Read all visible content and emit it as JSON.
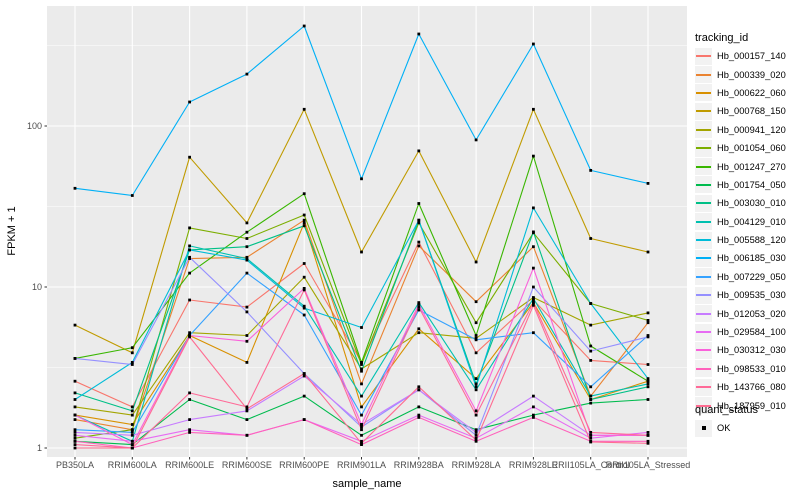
{
  "figure": {
    "y_axis": {
      "title": "FPKM + 1",
      "tick_labels": [
        "100",
        "10",
        "1"
      ]
    },
    "x_axis": {
      "title": "sample_name"
    },
    "legend": {
      "tracking_title": "tracking_id",
      "quant_title": "quant_status",
      "quant_ok_label": "OK"
    },
    "colors": {
      "panel_bg": "#EBEBEB",
      "gridline": "#FFFFFF",
      "legend_key_bg": "#F2F2F2",
      "tick_text": "#4D4D4D",
      "point": "#000000"
    }
  },
  "chart_data": {
    "type": "line",
    "title": "",
    "xlabel": "sample_name",
    "ylabel": "FPKM + 1",
    "y_scale": "log10",
    "y_ticks": [
      1,
      10,
      100
    ],
    "ylim": [
      0.9,
      500
    ],
    "grid": true,
    "legend_position": "right",
    "point_marker": "small black square (quant_status = OK) on every data point",
    "categories": [
      "PB350LA",
      "RRIM600LA",
      "RRIM600LE",
      "RRIM600SE",
      "RRIM600PE",
      "RRIM901LA",
      "RRIM928BA",
      "RRIM928LA",
      "RRIM928LE",
      "RRII105LA_Control",
      "RRII105LA_Stressed"
    ],
    "series": [
      {
        "name": "Hb_000157_140",
        "color": "#F8766D",
        "values": [
          2.6,
          1.8,
          8.3,
          7.5,
          14.0,
          3.4,
          19.0,
          3.9,
          8.3,
          3.5,
          3.3
        ]
      },
      {
        "name": "Hb_000339_020",
        "color": "#EA8331",
        "values": [
          1.5,
          1.3,
          15.0,
          15.3,
          26.0,
          2.5,
          18.0,
          8.1,
          17.8,
          2.1,
          6.0
        ]
      },
      {
        "name": "Hb_000622_060",
        "color": "#D89000",
        "values": [
          1.6,
          1.4,
          5.0,
          3.4,
          25.0,
          1.8,
          5.5,
          2.7,
          8.0,
          2.0,
          2.6
        ]
      },
      {
        "name": "Hb_000768_150",
        "color": "#C09B00",
        "values": [
          5.8,
          3.9,
          64.0,
          25.0,
          127.0,
          16.5,
          70.0,
          14.3,
          127.0,
          20.0,
          16.5
        ]
      },
      {
        "name": "Hb_000941_120",
        "color": "#A3A500",
        "values": [
          1.8,
          1.6,
          5.2,
          5.0,
          11.5,
          3.1,
          5.2,
          4.8,
          8.6,
          5.8,
          6.9
        ]
      },
      {
        "name": "Hb_001054_060",
        "color": "#7CAE00",
        "values": [
          1.15,
          1.3,
          23.3,
          20.0,
          28.0,
          3.3,
          25.0,
          6.0,
          21.7,
          7.9,
          6.2
        ]
      },
      {
        "name": "Hb_001247_270",
        "color": "#39B600",
        "values": [
          3.6,
          4.2,
          12.2,
          21.9,
          38.0,
          3.4,
          33.0,
          5.0,
          65.0,
          4.3,
          2.6
        ]
      },
      {
        "name": "Hb_001754_050",
        "color": "#00BB4E",
        "values": [
          1.1,
          1.05,
          2.0,
          1.5,
          2.1,
          1.2,
          1.8,
          1.3,
          1.6,
          1.9,
          2.0
        ]
      },
      {
        "name": "Hb_003030_010",
        "color": "#00C087",
        "values": [
          2.2,
          1.7,
          17.0,
          17.8,
          24.0,
          3.0,
          26.0,
          2.5,
          22.0,
          2.0,
          2.4
        ]
      },
      {
        "name": "Hb_004129_010",
        "color": "#00C0AF",
        "values": [
          1.6,
          1.1,
          18.0,
          15.0,
          7.6,
          2.1,
          8.0,
          2.3,
          8.5,
          2.1,
          2.5
        ]
      },
      {
        "name": "Hb_005588_120",
        "color": "#00BCD8",
        "values": [
          2.0,
          3.4,
          17.0,
          14.7,
          7.4,
          5.6,
          26.0,
          2.4,
          31.0,
          7.9,
          2.7
        ]
      },
      {
        "name": "Hb_006185_030",
        "color": "#00B0F6",
        "values": [
          41.0,
          37.0,
          141.0,
          210.0,
          418.0,
          47.0,
          373.0,
          82.0,
          323.0,
          53.0,
          44.0
        ]
      },
      {
        "name": "Hb_007229_050",
        "color": "#35A2FF",
        "values": [
          1.3,
          1.25,
          5.0,
          12.2,
          6.7,
          1.6,
          7.2,
          4.7,
          5.2,
          2.4,
          5.0
        ]
      },
      {
        "name": "Hb_009535_030",
        "color": "#9590FF",
        "values": [
          3.6,
          3.3,
          15.3,
          7.0,
          2.9,
          1.35,
          2.3,
          1.2,
          10.0,
          4.0,
          4.9
        ]
      },
      {
        "name": "Hb_012053_020",
        "color": "#C77CFF",
        "values": [
          1.25,
          1.2,
          1.5,
          1.7,
          2.8,
          1.4,
          2.3,
          1.25,
          2.1,
          1.2,
          1.2
        ]
      },
      {
        "name": "Hb_029584_100",
        "color": "#E76BF3",
        "values": [
          1.2,
          1.1,
          1.3,
          1.2,
          1.5,
          1.1,
          1.6,
          1.15,
          1.8,
          1.15,
          1.25
        ]
      },
      {
        "name": "Hb_030312_030",
        "color": "#FA62DB",
        "values": [
          1.6,
          1.05,
          5.0,
          4.6,
          9.8,
          1.4,
          7.8,
          1.7,
          13.1,
          1.2,
          1.2
        ]
      },
      {
        "name": "Hb_098533_010",
        "color": "#FF62BC",
        "values": [
          1.1,
          1.0,
          1.25,
          1.2,
          1.5,
          1.05,
          1.55,
          1.1,
          1.55,
          1.1,
          1.1
        ]
      },
      {
        "name": "Hb_143766_080",
        "color": "#FF6A98",
        "values": [
          1.05,
          1.0,
          2.2,
          1.8,
          9.6,
          1.3,
          7.5,
          1.6,
          8.0,
          1.25,
          1.2
        ]
      },
      {
        "name": "Hb_187959_010",
        "color": "#FF6C91",
        "values": [
          1.0,
          1.0,
          4.9,
          1.75,
          2.9,
          1.07,
          2.4,
          1.12,
          7.7,
          1.09,
          1.07
        ]
      }
    ]
  }
}
